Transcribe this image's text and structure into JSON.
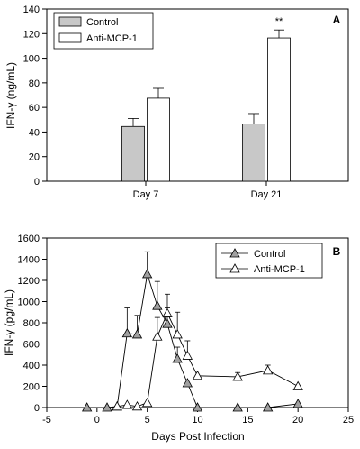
{
  "chart_data": [
    {
      "panel": "A",
      "type": "bar",
      "ylabel": "IFN-γ (ng/mL)",
      "ylim": [
        0,
        140
      ],
      "yticks": [
        0,
        20,
        40,
        60,
        80,
        100,
        120,
        140
      ],
      "categories": [
        "Day 7",
        "Day 21"
      ],
      "series": [
        {
          "name": "Control",
          "color": "#c8c8c8",
          "values": [
            44.5,
            46.5
          ],
          "errors": [
            6.5,
            8.5
          ]
        },
        {
          "name": "Anti-MCP-1",
          "color": "#ffffff",
          "values": [
            67.5,
            116.5
          ],
          "errors": [
            8,
            6.5
          ]
        }
      ],
      "annotations": [
        {
          "text": "**",
          "category": "Day 21",
          "series": "Anti-MCP-1"
        }
      ],
      "legend": "top-left"
    },
    {
      "panel": "B",
      "type": "line",
      "xlabel": "Days Post Infection",
      "ylabel": "IFN-γ (pg/mL)",
      "xlim": [
        -5,
        25
      ],
      "ylim": [
        0,
        1600
      ],
      "xticks": [
        -5,
        0,
        5,
        10,
        15,
        20,
        25
      ],
      "yticks": [
        0,
        200,
        400,
        600,
        800,
        1000,
        1200,
        1400,
        1600
      ],
      "series": [
        {
          "name": "Control",
          "color": "#a0a0a0",
          "x": [
            -1,
            1,
            2,
            3,
            4,
            5,
            6,
            7,
            8,
            9,
            10,
            14,
            17,
            20
          ],
          "y": [
            0,
            0,
            10,
            700,
            690,
            1260,
            960,
            790,
            460,
            230,
            0,
            0,
            0,
            35
          ],
          "errors": [
            0,
            0,
            0,
            240,
            180,
            210,
            230,
            150,
            110,
            0,
            0,
            0,
            0,
            0
          ]
        },
        {
          "name": "Anti-MCP-1",
          "color": "#ffffff",
          "x": [
            2,
            3,
            4,
            5,
            6,
            7,
            8,
            9,
            10,
            14,
            17,
            20
          ],
          "y": [
            10,
            25,
            10,
            45,
            670,
            890,
            690,
            490,
            300,
            290,
            350,
            200
          ],
          "errors": [
            0,
            0,
            0,
            0,
            180,
            180,
            210,
            140,
            0,
            40,
            50,
            0
          ]
        }
      ],
      "legend": "top-right"
    }
  ]
}
